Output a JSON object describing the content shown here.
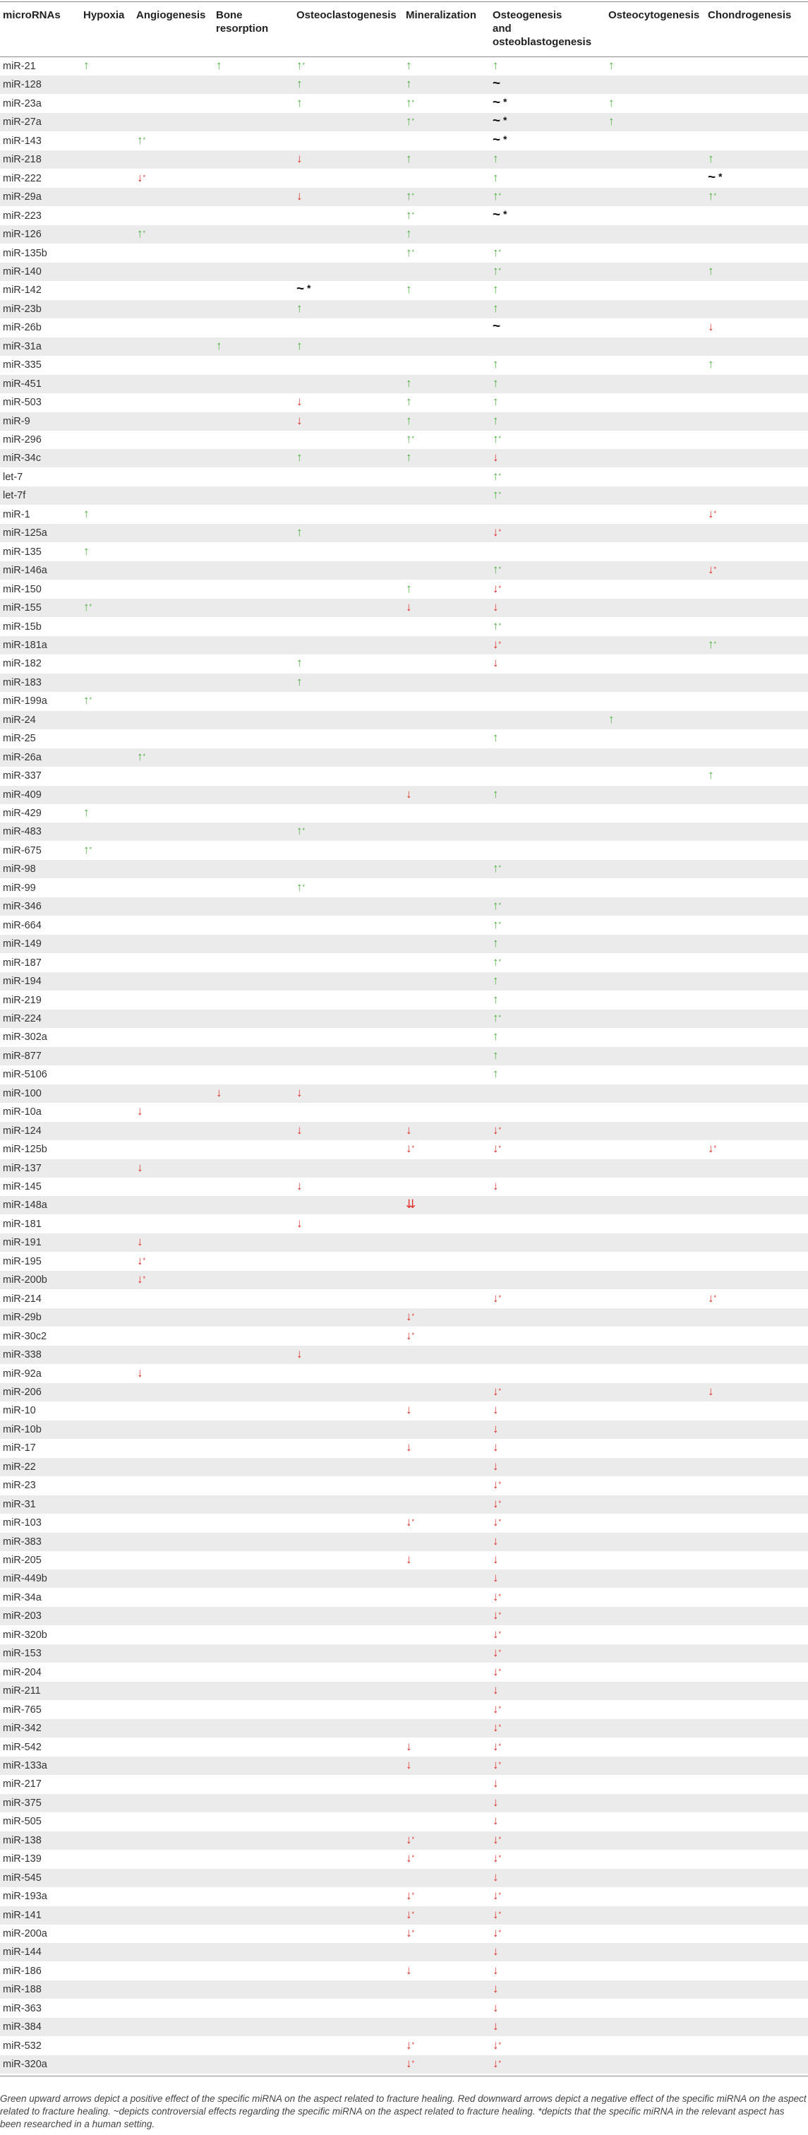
{
  "table": {
    "headers": [
      "microRNAs",
      "Hypoxia",
      "Angiogenesis",
      "Bone resorption",
      "Osteoclastogenesis",
      "Mineralization",
      "Osteogenesis and osteoblastogenesis",
      "Osteocytogenesis",
      "Chondrogenesis"
    ],
    "header_lines": [
      [
        "microRNAs"
      ],
      [
        "Hypoxia"
      ],
      [
        "Angiogenesis"
      ],
      [
        "Bone",
        "resorption"
      ],
      [
        "Osteoclastogenesis"
      ],
      [
        "Mineralization"
      ],
      [
        "Osteogenesis",
        "and",
        "osteoblastogenesis"
      ],
      [
        "Osteocytogenesis"
      ],
      [
        "Chondrogenesis"
      ]
    ],
    "symbols": {
      "up": "↑",
      "down": "↓",
      "tilde": "~",
      "controversial": "~ *",
      "human_mark": "*"
    },
    "rows": [
      {
        "name": "miR-21",
        "cells": {
          "1": "u",
          "3": "u",
          "4": "u*",
          "5": "u",
          "6": "u",
          "7": "u"
        }
      },
      {
        "name": "miR-128",
        "cells": {
          "4": "u",
          "5": "u",
          "6": "t"
        }
      },
      {
        "name": "miR-23a",
        "cells": {
          "4": "u",
          "5": "u*",
          "6": "t*",
          "7": "u"
        }
      },
      {
        "name": "miR-27a",
        "cells": {
          "5": "u*",
          "6": "t*",
          "7": "u"
        }
      },
      {
        "name": "miR-143",
        "cells": {
          "2": "u*",
          "6": "t*"
        }
      },
      {
        "name": "miR-218",
        "cells": {
          "4": "d",
          "5": "u",
          "6": "u",
          "8": "u"
        }
      },
      {
        "name": "miR-222",
        "cells": {
          "2": "d*",
          "6": "u",
          "8": "t*"
        }
      },
      {
        "name": "miR-29a",
        "cells": {
          "4": "d",
          "5": "u*",
          "6": "u*",
          "8": "u*"
        }
      },
      {
        "name": "miR-223",
        "cells": {
          "5": "u*",
          "6": "t*"
        }
      },
      {
        "name": "miR-126",
        "cells": {
          "2": "u*",
          "5": "u"
        }
      },
      {
        "name": "miR-135b",
        "cells": {
          "5": "u*",
          "6": "u*"
        }
      },
      {
        "name": "miR-140",
        "cells": {
          "6": "u*",
          "8": "u"
        }
      },
      {
        "name": "miR-142",
        "cells": {
          "4": "t*",
          "5": "u",
          "6": "u"
        }
      },
      {
        "name": "miR-23b",
        "cells": {
          "4": "u",
          "6": "u"
        }
      },
      {
        "name": "miR-26b",
        "cells": {
          "6": "t",
          "8": "d"
        }
      },
      {
        "name": "miR-31a",
        "cells": {
          "3": "u",
          "4": "u"
        }
      },
      {
        "name": "miR-335",
        "cells": {
          "6": "u",
          "8": "u"
        }
      },
      {
        "name": "miR-451",
        "cells": {
          "5": "u",
          "6": "u"
        }
      },
      {
        "name": "miR-503",
        "cells": {
          "4": "d",
          "5": "u",
          "6": "u"
        }
      },
      {
        "name": "miR-9",
        "cells": {
          "4": "d",
          "5": "u",
          "6": "u"
        }
      },
      {
        "name": "miR-296",
        "cells": {
          "5": "u*",
          "6": "u*"
        }
      },
      {
        "name": "miR-34c",
        "cells": {
          "4": "u",
          "5": "u",
          "6": "d"
        }
      },
      {
        "name": "let-7",
        "cells": {
          "6": "u*"
        }
      },
      {
        "name": "let-7f",
        "cells": {
          "6": "u*"
        }
      },
      {
        "name": "miR-1",
        "cells": {
          "1": "u",
          "8": "d*"
        }
      },
      {
        "name": "miR-125a",
        "cells": {
          "4": "u",
          "6": "d*"
        }
      },
      {
        "name": "miR-135",
        "cells": {
          "1": "u"
        }
      },
      {
        "name": "miR-146a",
        "cells": {
          "6": "u*",
          "8": "d*"
        }
      },
      {
        "name": "miR-150",
        "cells": {
          "5": "u",
          "6": "d*"
        }
      },
      {
        "name": "miR-155",
        "cells": {
          "1": "u*",
          "5": "d",
          "6": "d"
        }
      },
      {
        "name": "miR-15b",
        "cells": {
          "6": "u*"
        }
      },
      {
        "name": "miR-181a",
        "cells": {
          "6": "d*",
          "8": "u*"
        }
      },
      {
        "name": "miR-182",
        "cells": {
          "4": "u",
          "6": "d"
        }
      },
      {
        "name": "miR-183",
        "cells": {
          "4": "u"
        }
      },
      {
        "name": "miR-199a",
        "cells": {
          "1": "u*"
        }
      },
      {
        "name": "miR-24",
        "cells": {
          "7": "u"
        }
      },
      {
        "name": "miR-25",
        "cells": {
          "6": "u"
        }
      },
      {
        "name": "miR-26a",
        "cells": {
          "2": "u*"
        }
      },
      {
        "name": "miR-337",
        "cells": {
          "8": "u"
        }
      },
      {
        "name": "miR-409",
        "cells": {
          "5": "d",
          "6": "u"
        }
      },
      {
        "name": "miR-429",
        "cells": {
          "1": "u"
        }
      },
      {
        "name": "miR-483",
        "cells": {
          "4": "u*"
        }
      },
      {
        "name": "miR-675",
        "cells": {
          "1": "u*"
        }
      },
      {
        "name": "miR-98",
        "cells": {
          "6": "u*"
        }
      },
      {
        "name": "miR-99",
        "cells": {
          "4": "u*"
        }
      },
      {
        "name": "miR-346",
        "cells": {
          "6": "u*"
        }
      },
      {
        "name": "miR-664",
        "cells": {
          "6": "u*"
        }
      },
      {
        "name": "miR-149",
        "cells": {
          "6": "u"
        }
      },
      {
        "name": "miR-187",
        "cells": {
          "6": "u*"
        }
      },
      {
        "name": "miR-194",
        "cells": {
          "6": "u"
        }
      },
      {
        "name": "miR-219",
        "cells": {
          "6": "u"
        }
      },
      {
        "name": "miR-224",
        "cells": {
          "6": "u*"
        }
      },
      {
        "name": "miR-302a",
        "cells": {
          "6": "u"
        }
      },
      {
        "name": "miR-877",
        "cells": {
          "6": "u"
        }
      },
      {
        "name": "miR-5106",
        "cells": {
          "6": "u"
        }
      },
      {
        "name": "miR-100",
        "cells": {
          "3": "d",
          "4": "d"
        }
      },
      {
        "name": "miR-10a",
        "cells": {
          "2": "d"
        }
      },
      {
        "name": "miR-124",
        "cells": {
          "4": "d",
          "5": "d",
          "6": "d*"
        }
      },
      {
        "name": "miR-125b",
        "cells": {
          "5": "d*",
          "6": "d*",
          "8": "d*"
        }
      },
      {
        "name": "miR-137",
        "cells": {
          "2": "d"
        }
      },
      {
        "name": "miR-145",
        "cells": {
          "4": "d",
          "6": "d"
        }
      },
      {
        "name": "miR-148a",
        "cells": {
          "5": "D"
        }
      },
      {
        "name": "miR-181",
        "cells": {
          "4": "d"
        }
      },
      {
        "name": "miR-191",
        "cells": {
          "2": "d"
        }
      },
      {
        "name": "miR-195",
        "cells": {
          "2": "d*"
        }
      },
      {
        "name": "miR-200b",
        "cells": {
          "2": "d*"
        }
      },
      {
        "name": "miR-214",
        "cells": {
          "6": "d*",
          "8": "d*"
        }
      },
      {
        "name": "miR-29b",
        "cells": {
          "5": "d*"
        }
      },
      {
        "name": "miR-30c2",
        "cells": {
          "5": "d*"
        }
      },
      {
        "name": "miR-338",
        "cells": {
          "4": "d"
        }
      },
      {
        "name": "miR-92a",
        "cells": {
          "2": "d"
        }
      },
      {
        "name": "miR-206",
        "cells": {
          "6": "d*",
          "8": "d"
        }
      },
      {
        "name": "miR-10",
        "cells": {
          "5": "d",
          "6": "d"
        }
      },
      {
        "name": "miR-10b",
        "cells": {
          "6": "d"
        }
      },
      {
        "name": "miR-17",
        "cells": {
          "5": "d",
          "6": "d"
        }
      },
      {
        "name": "miR-22",
        "cells": {
          "6": "d"
        }
      },
      {
        "name": "miR-23",
        "cells": {
          "6": "d*"
        }
      },
      {
        "name": "miR-31",
        "cells": {
          "6": "d*"
        }
      },
      {
        "name": "miR-103",
        "cells": {
          "5": "d*",
          "6": "d*"
        }
      },
      {
        "name": "miR-383",
        "cells": {
          "6": "d"
        }
      },
      {
        "name": "miR-205",
        "cells": {
          "5": "d",
          "6": "d"
        }
      },
      {
        "name": "miR-449b",
        "cells": {
          "6": "d"
        }
      },
      {
        "name": "miR-34a",
        "cells": {
          "6": "d*"
        }
      },
      {
        "name": "miR-203",
        "cells": {
          "6": "d*"
        }
      },
      {
        "name": "miR-320b",
        "cells": {
          "6": "d*"
        }
      },
      {
        "name": "miR-153",
        "cells": {
          "6": "d*"
        }
      },
      {
        "name": "miR-204",
        "cells": {
          "6": "d*"
        }
      },
      {
        "name": "miR-211",
        "cells": {
          "6": "d"
        }
      },
      {
        "name": "miR-765",
        "cells": {
          "6": "d*"
        }
      },
      {
        "name": "miR-342",
        "cells": {
          "6": "d*"
        }
      },
      {
        "name": "miR-542",
        "cells": {
          "5": "d",
          "6": "d*"
        }
      },
      {
        "name": "miR-133a",
        "cells": {
          "5": "d",
          "6": "d*"
        }
      },
      {
        "name": "miR-217",
        "cells": {
          "6": "d"
        }
      },
      {
        "name": "miR-375",
        "cells": {
          "6": "d"
        }
      },
      {
        "name": "miR-505",
        "cells": {
          "6": "d"
        }
      },
      {
        "name": "miR-138",
        "cells": {
          "5": "d*",
          "6": "d*"
        }
      },
      {
        "name": "miR-139",
        "cells": {
          "5": "d*",
          "6": "d*"
        }
      },
      {
        "name": "miR-545",
        "cells": {
          "6": "d"
        }
      },
      {
        "name": "miR-193a",
        "cells": {
          "5": "d*",
          "6": "d*"
        }
      },
      {
        "name": "miR-141",
        "cells": {
          "5": "d*",
          "6": "d*"
        }
      },
      {
        "name": "miR-200a",
        "cells": {
          "5": "d*",
          "6": "d*"
        }
      },
      {
        "name": "miR-144",
        "cells": {
          "6": "d"
        }
      },
      {
        "name": "miR-186",
        "cells": {
          "5": "d",
          "6": "d"
        }
      },
      {
        "name": "miR-188",
        "cells": {
          "6": "d"
        }
      },
      {
        "name": "miR-363",
        "cells": {
          "6": "d"
        }
      },
      {
        "name": "miR-384",
        "cells": {
          "6": "d"
        }
      },
      {
        "name": "miR-532",
        "cells": {
          "5": "d*",
          "6": "d*"
        }
      },
      {
        "name": "miR-320a",
        "cells": {
          "5": "d*",
          "6": "d*"
        }
      }
    ]
  },
  "footnote": "Green upward arrows depict a positive effect of the specific miRNA on the aspect related to fracture healing. Red downward arrows depict a negative effect of the specific miRNA on the aspect related to fracture healing. ~depicts controversial effects regarding the specific miRNA on the aspect related to fracture healing. *depicts that the specific miRNA in the relevant aspect has been researched in a human setting.",
  "colors": {
    "up": "#4caf3f",
    "down": "#e0302a",
    "shade": "#ebebeb",
    "rule": "#8a8a8a"
  }
}
